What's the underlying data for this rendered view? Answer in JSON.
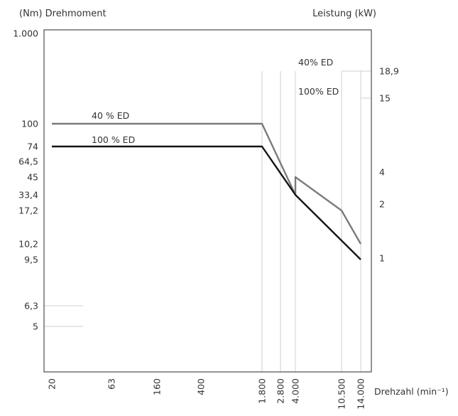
{
  "chart_data": {
    "type": "line",
    "title": "",
    "left_axis_label": "(Nm) Drehmoment",
    "right_axis_label": "Leistung (kW)",
    "x_axis_label": "Drehzahl (min⁻¹)",
    "x_scale": "log",
    "left_ticks": [
      "1.000",
      "100",
      "74",
      "64,5",
      "45",
      "33,4",
      "17,2",
      "10,2",
      "9,5",
      "6,3",
      "5"
    ],
    "right_ticks": [
      "18,9",
      "15",
      "4",
      "2",
      "1"
    ],
    "x_ticks": [
      "20",
      "63",
      "160",
      "400",
      "1.800",
      "2.800",
      "4.000",
      "10.500",
      "14.000"
    ],
    "series": [
      {
        "name": "40 % ED",
        "axis": "torque",
        "color": "#7b7b7b",
        "points": [
          {
            "x": 20,
            "y": "100"
          },
          {
            "x": 1800,
            "y": "100"
          },
          {
            "x": 4000,
            "y": "33,4"
          },
          {
            "x": 4000,
            "y": "45"
          },
          {
            "x": 10500,
            "y": "17,2"
          },
          {
            "x": 14000,
            "y": "10,2"
          }
        ]
      },
      {
        "name": "100 % ED",
        "axis": "torque",
        "color": "#151515",
        "points": [
          {
            "x": 20,
            "y": "74"
          },
          {
            "x": 1800,
            "y": "74"
          },
          {
            "x": 4000,
            "y": "33,4"
          },
          {
            "x": 14000,
            "y": "9,5"
          }
        ]
      },
      {
        "name": "40% ED",
        "axis": "power",
        "color": "#b2b2b2",
        "points": [
          {
            "x": 40,
            "y": "6,3"
          },
          {
            "x": 1800,
            "y": "18,9"
          },
          {
            "x": 2800,
            "y": "18,9"
          },
          {
            "x": 4000,
            "y": "15"
          },
          {
            "x": 4000,
            "y": "18,9"
          },
          {
            "x": 10500,
            "y": "18,9"
          },
          {
            "x": 14000,
            "y": "15"
          }
        ]
      },
      {
        "name": "100% ED",
        "axis": "power",
        "color": "#7aa3b0",
        "points": [
          {
            "x": 40,
            "y": "5"
          },
          {
            "x": 1800,
            "y": "15"
          },
          {
            "x": 14000,
            "y": "15"
          }
        ]
      }
    ]
  }
}
